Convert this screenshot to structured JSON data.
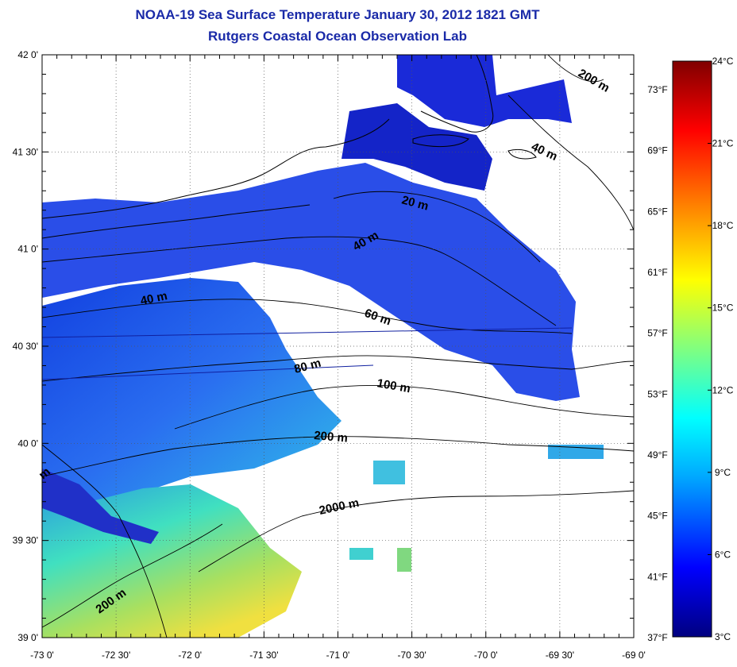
{
  "header": {
    "title": "NOAA-19 Sea Surface Temperature January 30, 2012 1821 GMT",
    "subtitle": "Rutgers Coastal Ocean Observation Lab"
  },
  "map": {
    "lon_range": [
      -73.0,
      -69.0
    ],
    "lat_range": [
      39.0,
      42.0
    ],
    "grid": true,
    "lat_labels": [
      "42 0'",
      "41 30'",
      "41 0'",
      "40 30'",
      "40 0'",
      "39 30'",
      "39 0'"
    ],
    "lon_labels": [
      "-73 0'",
      "-72 30'",
      "-72 0'",
      "-71 30'",
      "-71 0'",
      "-70 30'",
      "-70 0'",
      "-69 30'",
      "-69 0'"
    ],
    "contour_labels": [
      "200 m",
      "40 m",
      "20 m",
      "40 m",
      "40 m",
      "60 m",
      "80 m",
      "100 m",
      "200 m",
      "2000 m",
      "200 m",
      "m"
    ]
  },
  "colorbar": {
    "celsius_labels": [
      "24°C",
      "21°C",
      "18°C",
      "15°C",
      "12°C",
      "9°C",
      "6°C",
      "3°C"
    ],
    "fahrenheit_labels": [
      "73°F",
      "69°F",
      "65°F",
      "61°F",
      "57°F",
      "53°F",
      "49°F",
      "45°F",
      "41°F",
      "37°F"
    ],
    "colors": [
      "#000080",
      "#0000ff",
      "#00aaff",
      "#00ffff",
      "#80ff80",
      "#ffff00",
      "#ff8000",
      "#ff0000",
      "#800000"
    ]
  }
}
